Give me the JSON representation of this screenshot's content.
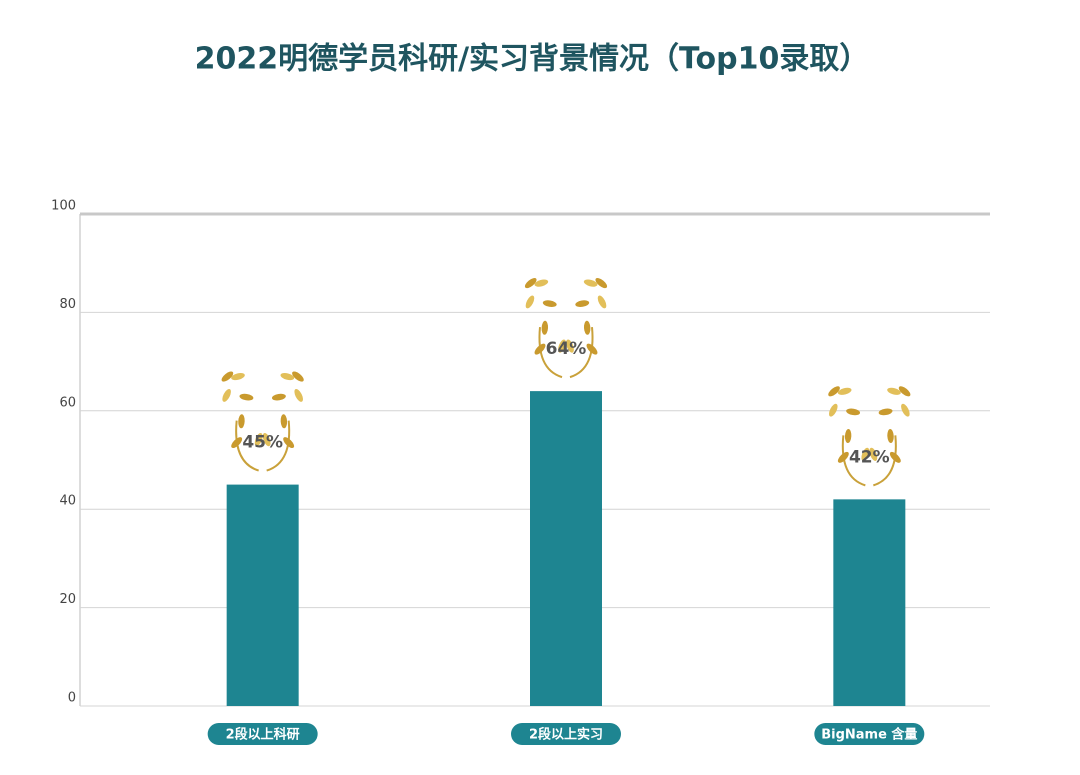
{
  "chart_data": {
    "type": "bar",
    "title": "2022明德学员科研/实习背景情况（Top10录取）",
    "categories": [
      "2段以上科研",
      "2段以上实习",
      "BigName 含量"
    ],
    "values": [
      45,
      64,
      42
    ],
    "value_labels": [
      "45%",
      "64%",
      "42%"
    ],
    "color": "#1e8591",
    "ylim": [
      0,
      100
    ],
    "yticks": [
      0,
      20,
      40,
      60,
      80,
      100
    ],
    "grid": true
  }
}
